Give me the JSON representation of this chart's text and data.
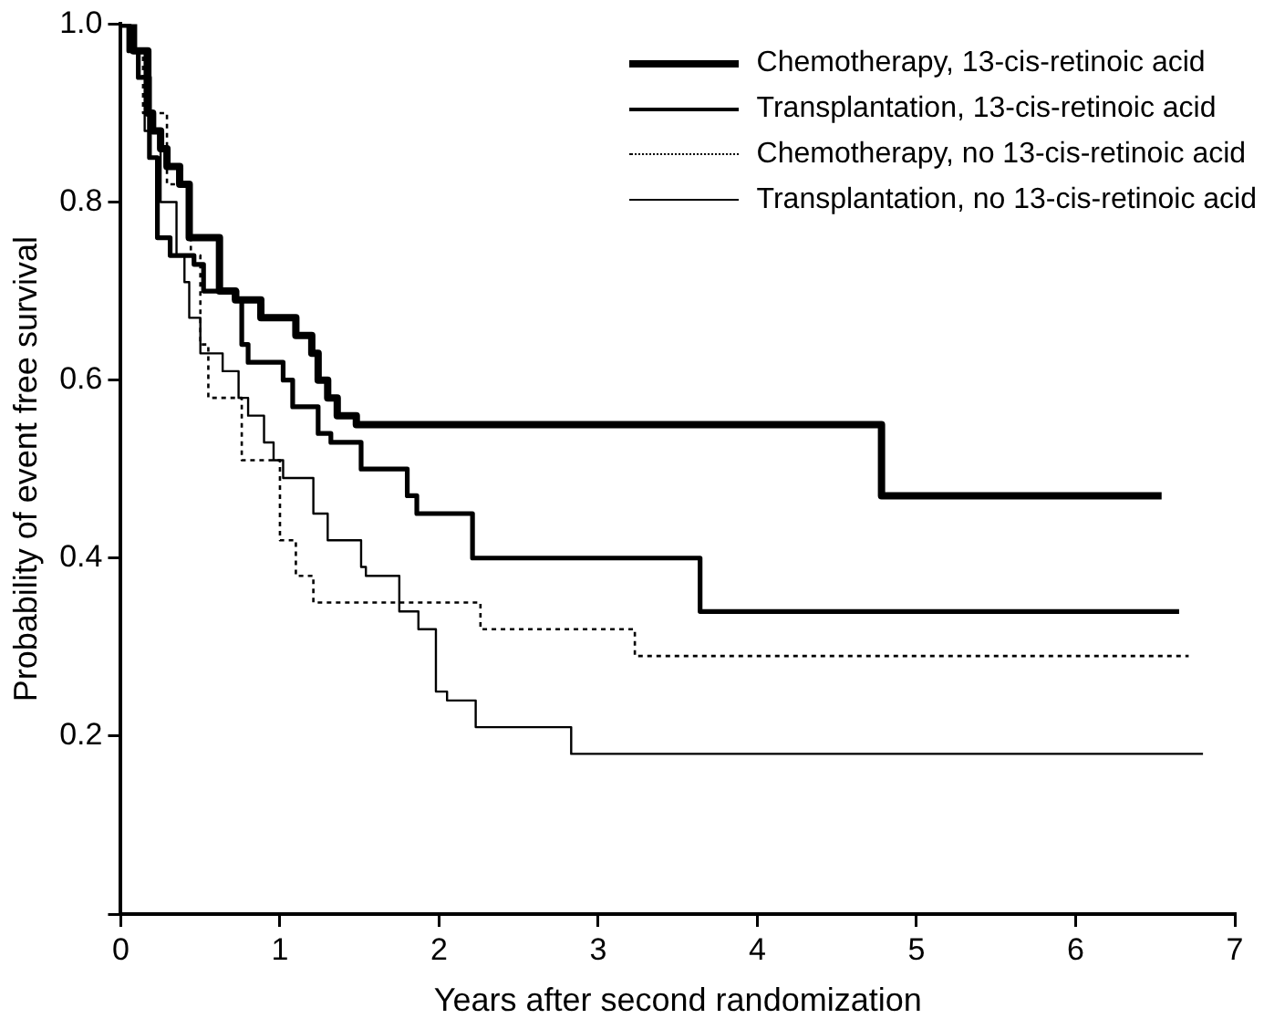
{
  "chart_data": {
    "type": "step",
    "xlabel": "Years after second randomization",
    "ylabel": "Probability of event free survival",
    "xlim": [
      0,
      7
    ],
    "xticks": [
      0,
      1,
      2,
      3,
      4,
      5,
      6,
      7
    ],
    "ylim": [
      0,
      1
    ],
    "yticks": [
      {
        "value": 0,
        "label": null
      },
      0.2,
      0.4,
      0.6,
      0.8,
      {
        "value": 1,
        "label": "1.0"
      }
    ],
    "grid": false,
    "legend": "top right",
    "marker": "none",
    "series": [
      {
        "name": "Chemotherapy, 13-cis-retinoic acid",
        "color": "#000000",
        "line_style": "solid",
        "x": [
          0,
          0.08,
          0.17,
          0.2,
          0.25,
          0.29,
          0.37,
          0.43,
          0.62,
          0.72,
          0.88,
          1.1,
          1.2,
          1.24,
          1.3,
          1.36,
          1.48,
          4.78,
          6.54
        ],
        "values": [
          1,
          0.97,
          0.9,
          0.88,
          0.86,
          0.84,
          0.82,
          0.76,
          0.7,
          0.69,
          0.67,
          0.65,
          0.63,
          0.6,
          0.58,
          0.56,
          0.55,
          0.47,
          0.47
        ]
      },
      {
        "name": "Transplantation, 13-cis-retinoic acid",
        "color": "#000000",
        "line_style": "solid",
        "x": [
          0,
          0.05,
          0.11,
          0.18,
          0.23,
          0.31,
          0.46,
          0.52,
          0.73,
          0.76,
          0.8,
          1.02,
          1.08,
          1.24,
          1.32,
          1.51,
          1.8,
          1.86,
          2.21,
          3.64,
          6.65
        ],
        "values": [
          1,
          0.97,
          0.94,
          0.85,
          0.76,
          0.74,
          0.73,
          0.7,
          0.69,
          0.64,
          0.62,
          0.6,
          0.57,
          0.54,
          0.53,
          0.5,
          0.47,
          0.45,
          0.4,
          0.34,
          0.34
        ]
      },
      {
        "name": "Chemotherapy, no 13-cis-retinoic acid",
        "color": "#000000",
        "line_style": "dotted",
        "x": [
          0,
          0.06,
          0.14,
          0.29,
          0.44,
          0.5,
          0.55,
          0.76,
          1,
          1.1,
          1.21,
          2.26,
          3.23,
          6.71
        ],
        "values": [
          1,
          0.97,
          0.9,
          0.82,
          0.74,
          0.64,
          0.58,
          0.51,
          0.42,
          0.38,
          0.35,
          0.32,
          0.29,
          0.29
        ]
      },
      {
        "name": "Transplantation, no 13-cis-retinoic acid",
        "color": "#000000",
        "line_style": "solid",
        "x": [
          0,
          0.05,
          0.15,
          0.25,
          0.35,
          0.4,
          0.43,
          0.5,
          0.64,
          0.74,
          0.8,
          0.9,
          0.96,
          1.02,
          1.21,
          1.3,
          1.51,
          1.54,
          1.75,
          1.87,
          1.98,
          2.05,
          2.23,
          2.83,
          6.8
        ],
        "values": [
          1,
          0.97,
          0.88,
          0.8,
          0.74,
          0.71,
          0.67,
          0.63,
          0.61,
          0.58,
          0.56,
          0.53,
          0.51,
          0.49,
          0.45,
          0.42,
          0.39,
          0.38,
          0.34,
          0.32,
          0.25,
          0.24,
          0.21,
          0.18,
          0.18
        ]
      }
    ]
  }
}
